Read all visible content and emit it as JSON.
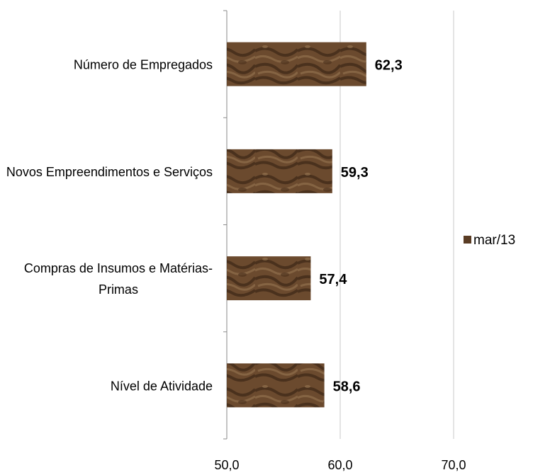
{
  "chart_data": {
    "type": "bar",
    "orientation": "horizontal",
    "categories": [
      [
        "Número de Empregados"
      ],
      [
        "Novos Empreendimentos e Serviços"
      ],
      [
        "Compras de Insumos e Matérias-",
        "Primas"
      ],
      [
        "Nível de Atividade"
      ]
    ],
    "series": [
      {
        "name": "mar/13",
        "values": [
          62.3,
          59.3,
          57.4,
          58.6
        ],
        "value_labels": [
          "62,3",
          "59,3",
          "57,4",
          "58,6"
        ]
      }
    ],
    "xlim": [
      50,
      70
    ],
    "x_ticks": [
      50,
      60,
      70
    ],
    "x_tick_labels": [
      "50,0",
      "60,0",
      "70,0"
    ],
    "grid": "vertical",
    "legend_position": "right",
    "colors": {
      "bar": "#6b4a2e",
      "bar_dark": "#3f2816",
      "bar_light": "#8c6a48",
      "grid": "#c8c8c8",
      "axis": "#8a8a8a"
    }
  }
}
